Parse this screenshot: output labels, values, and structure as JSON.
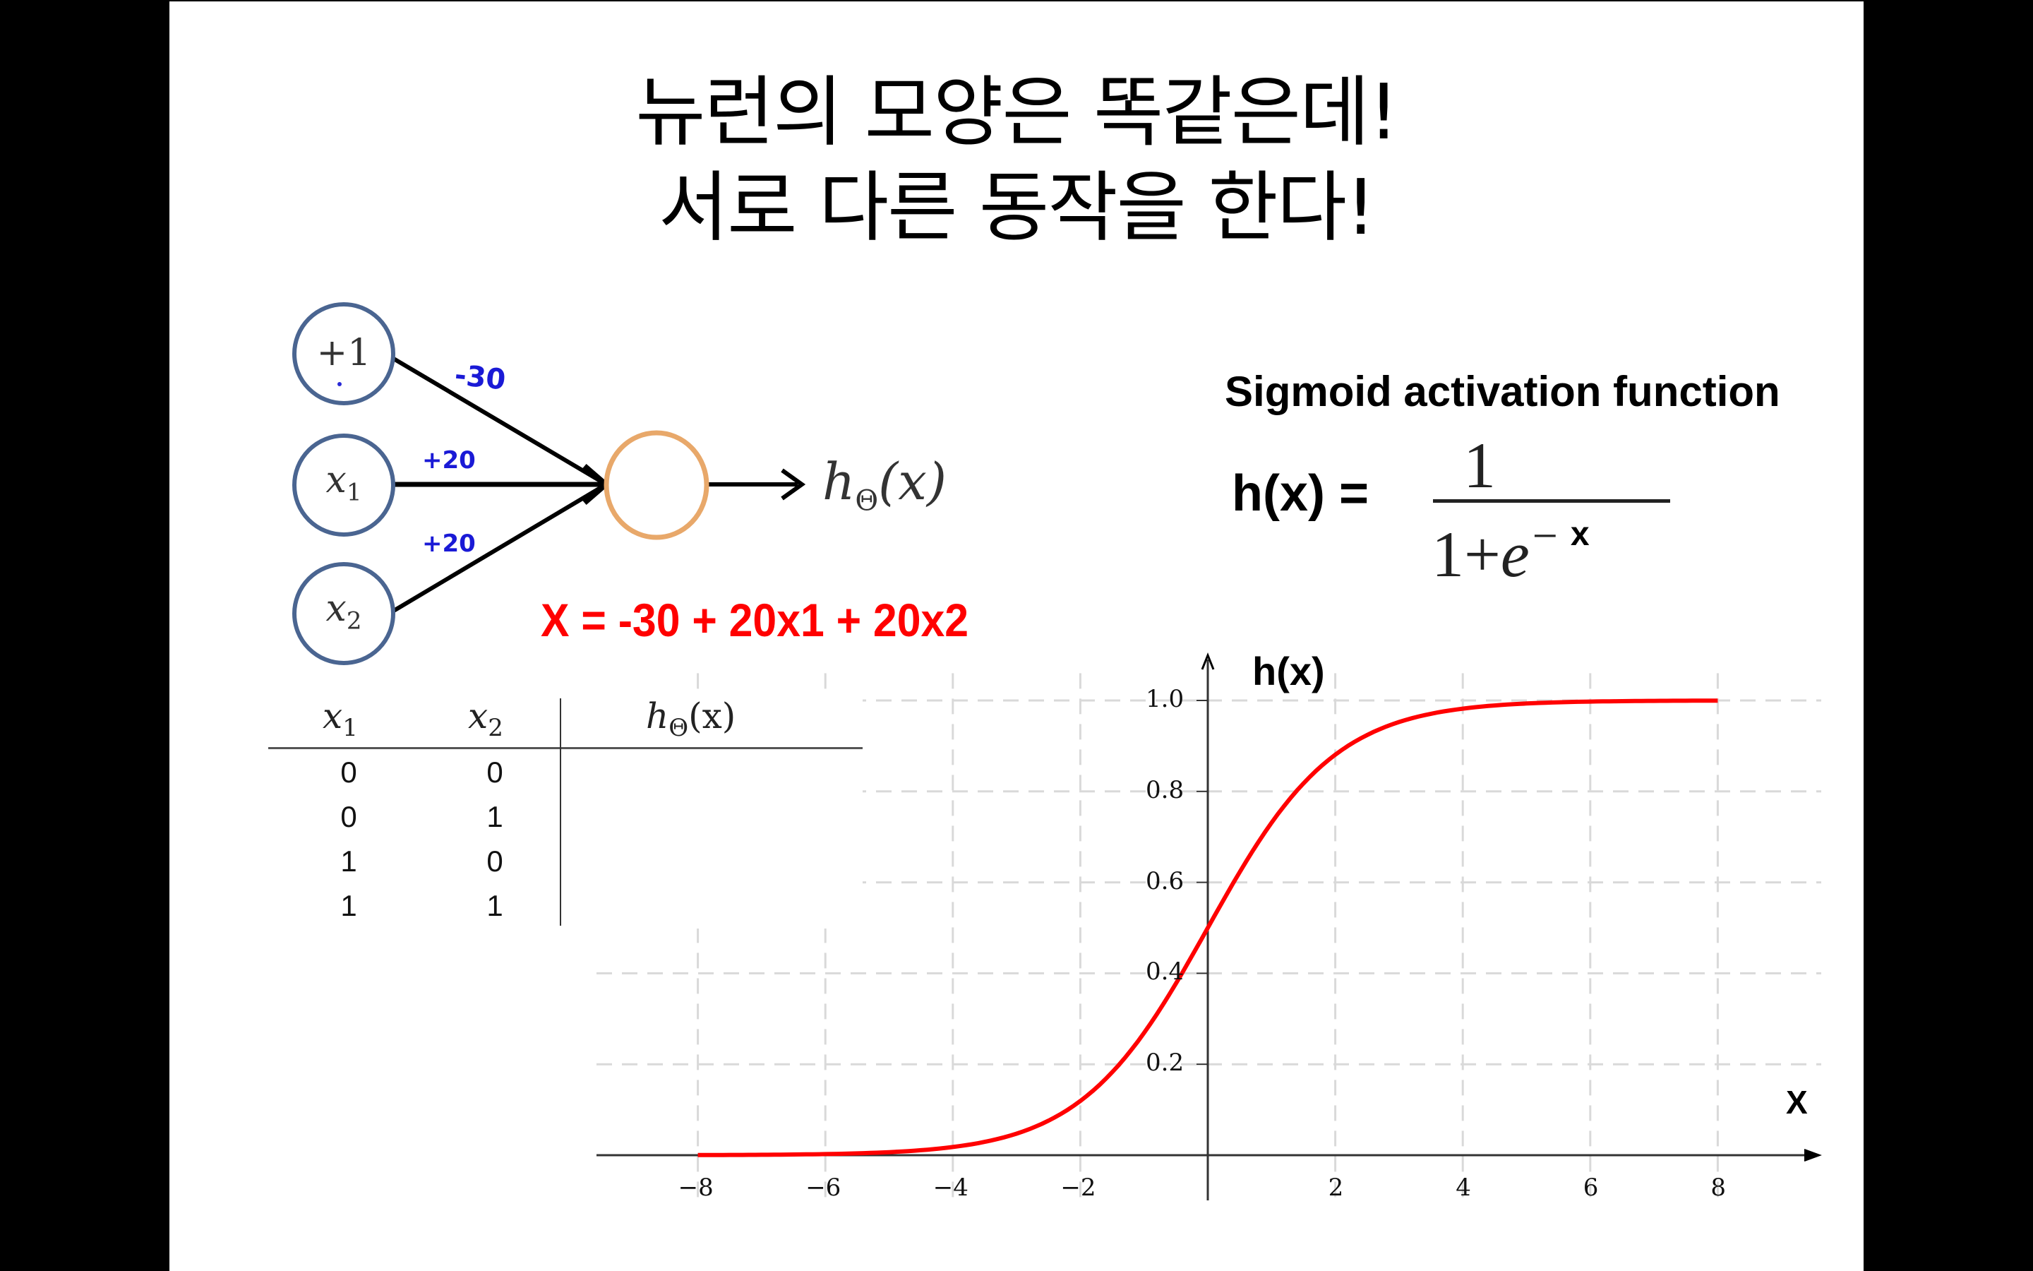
{
  "slide": {
    "title_lines": [
      "뉴런의 모양은 똑같은데!",
      "서로 다른 동작을 한다!"
    ],
    "background": "#ffffff",
    "letterbox_color": "#000000"
  },
  "network": {
    "input_nodes": [
      {
        "label": "+1",
        "sub": ""
      },
      {
        "label": "x",
        "sub": "1"
      },
      {
        "label": "x",
        "sub": "2"
      }
    ],
    "weights": [
      "-30",
      "+20",
      "+20"
    ],
    "output_label": {
      "main": "h",
      "sub": "Θ",
      "arg": "(x)"
    },
    "input_node_color": "#4a6591",
    "output_node_color": "#e8a86a",
    "weight_color": "#1a1ad6",
    "equation": "X = -30 + 20x1 + 20x2",
    "equation_color": "#ff0000"
  },
  "truth_table": {
    "headers": [
      {
        "main": "x",
        "sub": "1"
      },
      {
        "main": "x",
        "sub": "2"
      },
      {
        "main": "h",
        "sub": "Θ",
        "arg": "(x)"
      }
    ],
    "rows": [
      [
        "0",
        "0",
        ""
      ],
      [
        "0",
        "1",
        ""
      ],
      [
        "1",
        "0",
        ""
      ],
      [
        "1",
        "1",
        ""
      ]
    ]
  },
  "sigmoid": {
    "heading": "Sigmoid activation function",
    "lhs": "h(x) =",
    "numerator": "1",
    "denominator_base": "1+",
    "denominator_e": "e",
    "denominator_minus": "−",
    "denominator_exp": "x"
  },
  "chart_data": {
    "type": "line",
    "title": "",
    "xlabel": "X",
    "ylabel": "h(x)",
    "xlim": [
      -9.5,
      9.5
    ],
    "ylim": [
      0,
      1.1
    ],
    "grid": true,
    "x_ticks": [
      -8,
      -6,
      -4,
      -2,
      2,
      4,
      6,
      8
    ],
    "x_tick_labels": [
      "−8",
      "−6",
      "−4",
      "−2",
      "2",
      "4",
      "6",
      "8"
    ],
    "y_ticks": [
      0.2,
      0.4,
      0.6,
      0.8,
      1.0
    ],
    "y_tick_labels": [
      "0.2",
      "0.4",
      "0.6",
      "0.8",
      "1.0"
    ],
    "series": [
      {
        "name": "sigmoid",
        "color": "#ff0000",
        "x": [
          -8,
          -7,
          -6,
          -5,
          -4,
          -3,
          -2.5,
          -2,
          -1.5,
          -1,
          -0.5,
          0,
          0.5,
          1,
          1.5,
          2,
          2.5,
          3,
          4,
          5,
          6,
          7,
          8
        ],
        "values": [
          0.0003,
          0.0009,
          0.0025,
          0.0067,
          0.018,
          0.047,
          0.076,
          0.119,
          0.182,
          0.269,
          0.378,
          0.5,
          0.622,
          0.731,
          0.818,
          0.881,
          0.924,
          0.953,
          0.982,
          0.993,
          0.998,
          0.999,
          1.0
        ]
      }
    ]
  }
}
